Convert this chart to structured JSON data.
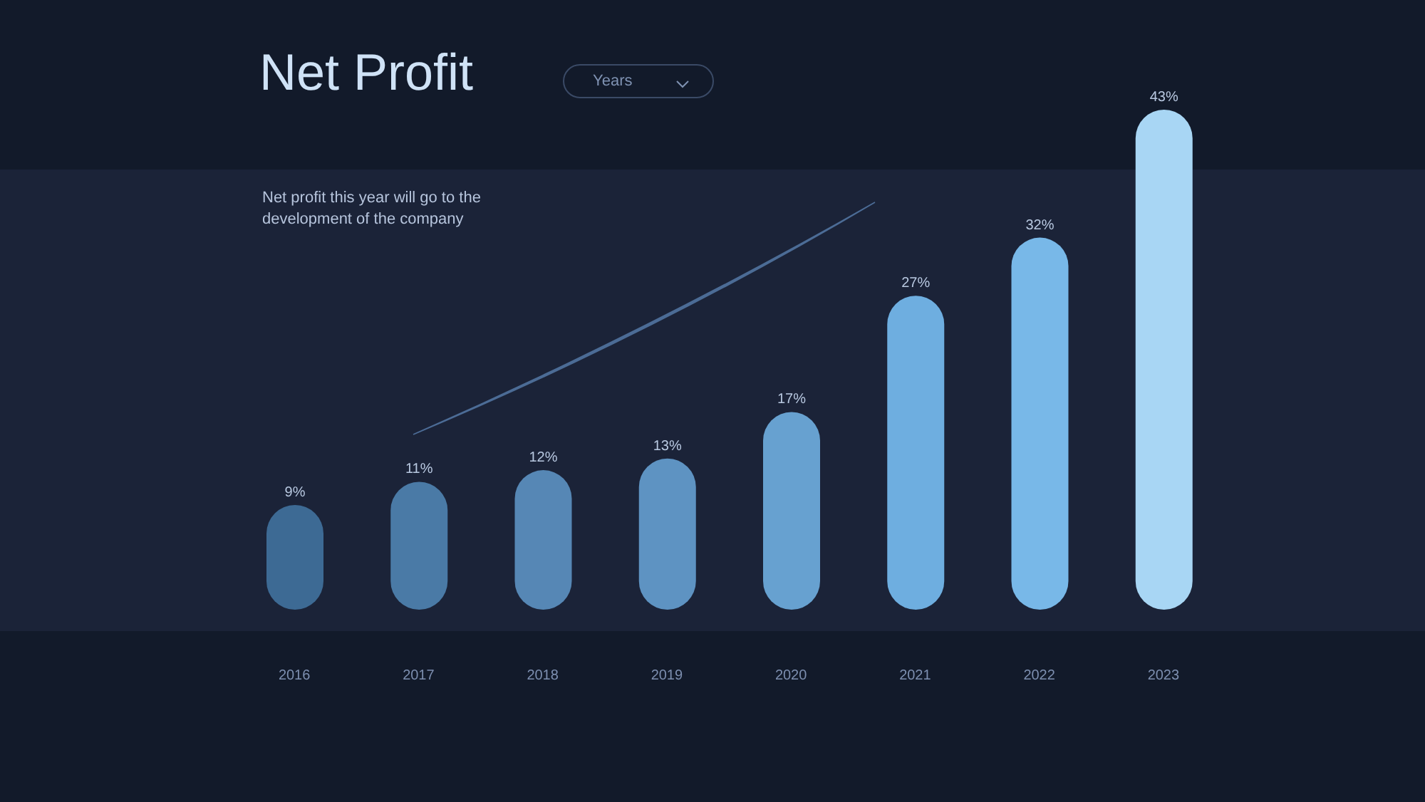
{
  "chart_data": {
    "type": "bar",
    "title": "Net Profit",
    "annotations": [
      "Net profit this year will go to the development of the company",
      "Years"
    ],
    "categories": [
      "2016",
      "2017",
      "2018",
      "2019",
      "2020",
      "2021",
      "2022",
      "2023"
    ],
    "values": [
      9,
      11,
      12,
      13,
      17,
      27,
      32,
      43
    ],
    "value_labels": [
      "9%",
      "11%",
      "12%",
      "13%",
      "17%",
      "27%",
      "32%",
      "43%"
    ],
    "colors": [
      "#3d6a94",
      "#4a7aa6",
      "#5687b5",
      "#5e93c2",
      "#67a1d0",
      "#6eaee0",
      "#78b8e8",
      "#a8d6f4"
    ]
  }
}
